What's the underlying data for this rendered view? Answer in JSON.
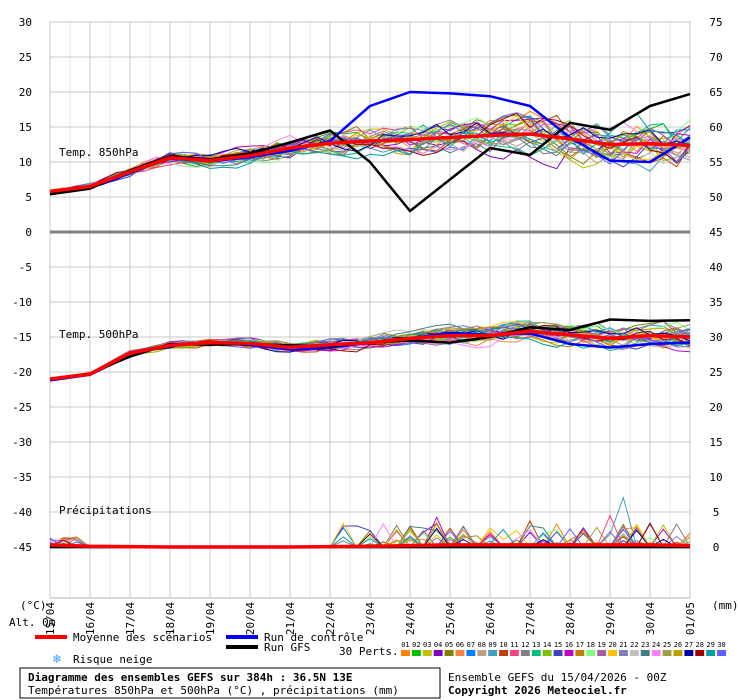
{
  "chart_data": {
    "type": "line",
    "x_dates": [
      "15/04",
      "16/04",
      "17/04",
      "18/04",
      "19/04",
      "20/04",
      "21/04",
      "22/04",
      "23/04",
      "24/04",
      "25/04",
      "26/04",
      "27/04",
      "28/04",
      "29/04",
      "30/04",
      "01/05"
    ],
    "left_axis_ticks": [
      30,
      25,
      20,
      15,
      10,
      5,
      0,
      -5,
      -10,
      -15,
      -20,
      -25,
      -30,
      -35,
      -40,
      -45
    ],
    "right_axis_ticks": [
      75,
      70,
      65,
      60,
      55,
      50,
      45,
      40,
      35,
      30,
      25,
      20,
      15,
      10,
      5,
      0
    ],
    "left_unit": "(°C)",
    "right_unit": "(mm)",
    "alt_label": "Alt. 0m",
    "panel_labels": {
      "t850": "Temp. 850hPa",
      "t500": "Temp. 500hPa",
      "precip": "Précipitations"
    },
    "series": [
      {
        "name": "Moyenne des scénarios",
        "color": "#ff0000",
        "t850": [
          5.8,
          6.5,
          8.6,
          10.6,
          10.2,
          10.9,
          12,
          12.7,
          13,
          13.2,
          13.5,
          13.8,
          14,
          13.3,
          12.5,
          12.6,
          12.4
        ],
        "t500": [
          -21,
          -20.3,
          -17.3,
          -16.2,
          -15.8,
          -15.9,
          -16.5,
          -16.1,
          -15.8,
          -15.2,
          -14.8,
          -14.8,
          -14.2,
          -14.7,
          -15.2,
          -14.8,
          -15
        ],
        "precip": [
          0.3,
          0.1,
          0.05,
          0,
          0,
          0,
          0,
          0.05,
          0.1,
          0.2,
          0.3,
          0.3,
          0.3,
          0.3,
          0.3,
          0.3,
          0.2
        ]
      },
      {
        "name": "Run de contrôle",
        "color": "#0000ff",
        "t850": [
          5.5,
          6.3,
          8.5,
          10.5,
          10.1,
          10.7,
          11.6,
          13,
          18,
          20,
          19.8,
          19.4,
          18,
          13.5,
          10.2,
          10,
          13.5
        ],
        "t500": [
          -21.2,
          -20.4,
          -17.6,
          -16.1,
          -15.9,
          -16.1,
          -16.8,
          -16.5,
          -15.8,
          -15.2,
          -14.4,
          -14.7,
          -14.5,
          -16,
          -16.5,
          -16,
          -15.8
        ],
        "precip": [
          0,
          0,
          0,
          0,
          0,
          0,
          0,
          0,
          0,
          0,
          0,
          0,
          0,
          0,
          0,
          0,
          0
        ]
      },
      {
        "name": "Run GFS",
        "color": "#000000",
        "t850": [
          5.4,
          6.2,
          8.8,
          10.8,
          10.4,
          11.2,
          12.8,
          14.5,
          10,
          3,
          7.5,
          12,
          11,
          15.6,
          14.6,
          18,
          19.7
        ],
        "t500": [
          -21,
          -20.2,
          -17.8,
          -16,
          -16.1,
          -16,
          -16.2,
          -16.3,
          -15.8,
          -15.5,
          -15.8,
          -15,
          -13.6,
          -14,
          -12.5,
          -12.7,
          -12.6
        ],
        "precip": [
          0,
          0,
          0,
          0,
          0,
          0,
          0,
          0,
          0,
          0,
          0,
          0,
          0,
          0,
          0,
          0,
          0
        ]
      }
    ],
    "perturbations_count_label": "30 Perts.",
    "perturbation_ids": [
      "01",
      "02",
      "03",
      "04",
      "05",
      "06",
      "07",
      "08",
      "09",
      "10",
      "11",
      "12",
      "13",
      "14",
      "15",
      "16",
      "17",
      "18",
      "19",
      "20",
      "21",
      "22",
      "23",
      "24",
      "25",
      "26",
      "27",
      "28",
      "29",
      "30"
    ],
    "perturbation_colors": [
      "#ff8000",
      "#00c000",
      "#c0c000",
      "#8000c0",
      "#808000",
      "#ff8040",
      "#0080ff",
      "#c0a080",
      "#40a0c0",
      "#c04000",
      "#ff4080",
      "#808080",
      "#00c080",
      "#80c000",
      "#4040c0",
      "#c000c0",
      "#c08000",
      "#80ff80",
      "#a060a0",
      "#ffc000",
      "#8080c0",
      "#c0c0c0",
      "#408080",
      "#ff80ff",
      "#a0a040",
      "#c0a000",
      "#0000a0",
      "#a00000",
      "#00a0a0",
      "#6060ff"
    ],
    "legend": {
      "mean": "Moyenne des scénarios",
      "control": "Run de contrôle",
      "gfs": "Run GFS",
      "snow": "Risque neige"
    },
    "footer": {
      "title": "Diagramme des ensembles GEFS sur 384h : 36.5N 13E",
      "subtitle": "Températures 850hPa et 500hPa (°C) , précipitations (mm)",
      "run": "Ensemble GEFS du 15/04/2026 - 00Z",
      "copyright": "Copyright 2026 Meteociel.fr"
    }
  }
}
